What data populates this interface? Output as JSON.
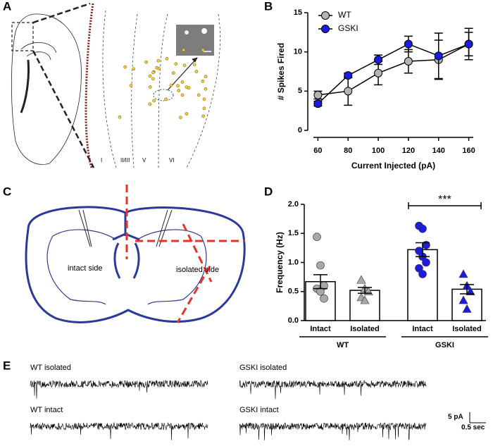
{
  "panel_labels": [
    "A",
    "B",
    "C",
    "D",
    "E"
  ],
  "panel_a": {
    "layers": [
      "I",
      "II/III",
      "V",
      "VI"
    ]
  },
  "panel_c": {
    "labels": [
      "intact side",
      "isolated side"
    ]
  },
  "panel_e": {
    "traces": [
      "WT isolated",
      "GSKI isolated",
      "WT intact",
      "GSKI intact"
    ],
    "scale_y": "5 pA",
    "scale_x": "0.5 sec"
  },
  "chart_data": [
    {
      "type": "line",
      "ylabel": "# Spikes Fired",
      "xlabel": "Current Injected (pA)",
      "x": [
        60,
        80,
        100,
        120,
        140,
        160
      ],
      "xlim": [
        57,
        163
      ],
      "xticks": [
        60,
        80,
        100,
        120,
        140,
        160
      ],
      "ylim": [
        0,
        15
      ],
      "yticks": [
        0,
        5,
        10,
        15
      ],
      "legend": "upper left",
      "series": [
        {
          "name": "WT",
          "color": "#b4b4b4",
          "values": [
            4.5,
            5.0,
            7.3,
            8.8,
            9.0,
            11.0
          ],
          "errors": [
            0.5,
            1.8,
            1.5,
            1.5,
            2.5,
            1.5
          ]
        },
        {
          "name": "GSKI",
          "color": "#1c1ce0",
          "values": [
            3.4,
            7.0,
            9.0,
            11.0,
            9.5,
            11.0
          ],
          "errors": [
            0.3,
            0.3,
            0.6,
            1.0,
            2.9,
            2.0
          ]
        }
      ]
    },
    {
      "type": "bar",
      "ylabel": "Frequency (Hz)",
      "categories": [
        "Intact",
        "Isolated",
        "Intact",
        "Isolated"
      ],
      "group_labels": [
        "WT",
        "GSKI"
      ],
      "values": [
        0.67,
        0.52,
        1.22,
        0.54
      ],
      "errors": [
        0.12,
        0.05,
        0.12,
        0.08
      ],
      "points": [
        [
          1.44,
          0.95,
          0.6,
          0.55,
          0.5,
          0.38
        ],
        [
          0.7,
          0.55,
          0.5,
          0.4,
          0.35
        ],
        [
          1.63,
          1.58,
          1.3,
          1.2,
          1.1,
          1.0,
          0.9,
          0.8
        ],
        [
          0.8,
          0.6,
          0.5,
          0.35,
          0.2
        ]
      ],
      "point_colors": [
        "#a8a8a8",
        "#a8a8a8",
        "#1c1ce0",
        "#1c1ce0"
      ],
      "point_markers": [
        "circle",
        "triangle",
        "circle",
        "triangle"
      ],
      "bar_color": "#ffffff",
      "edge_color": "#000000",
      "ylim": [
        0,
        2
      ],
      "yticks": [
        {
          "value": 0,
          "label": "0.0"
        },
        {
          "value": 0.5,
          "label": "0.5"
        },
        {
          "value": 1,
          "label": "1.0"
        },
        {
          "value": 1.5,
          "label": "1.5"
        },
        {
          "value": 2,
          "label": "2.0"
        }
      ],
      "significance": "***"
    }
  ]
}
